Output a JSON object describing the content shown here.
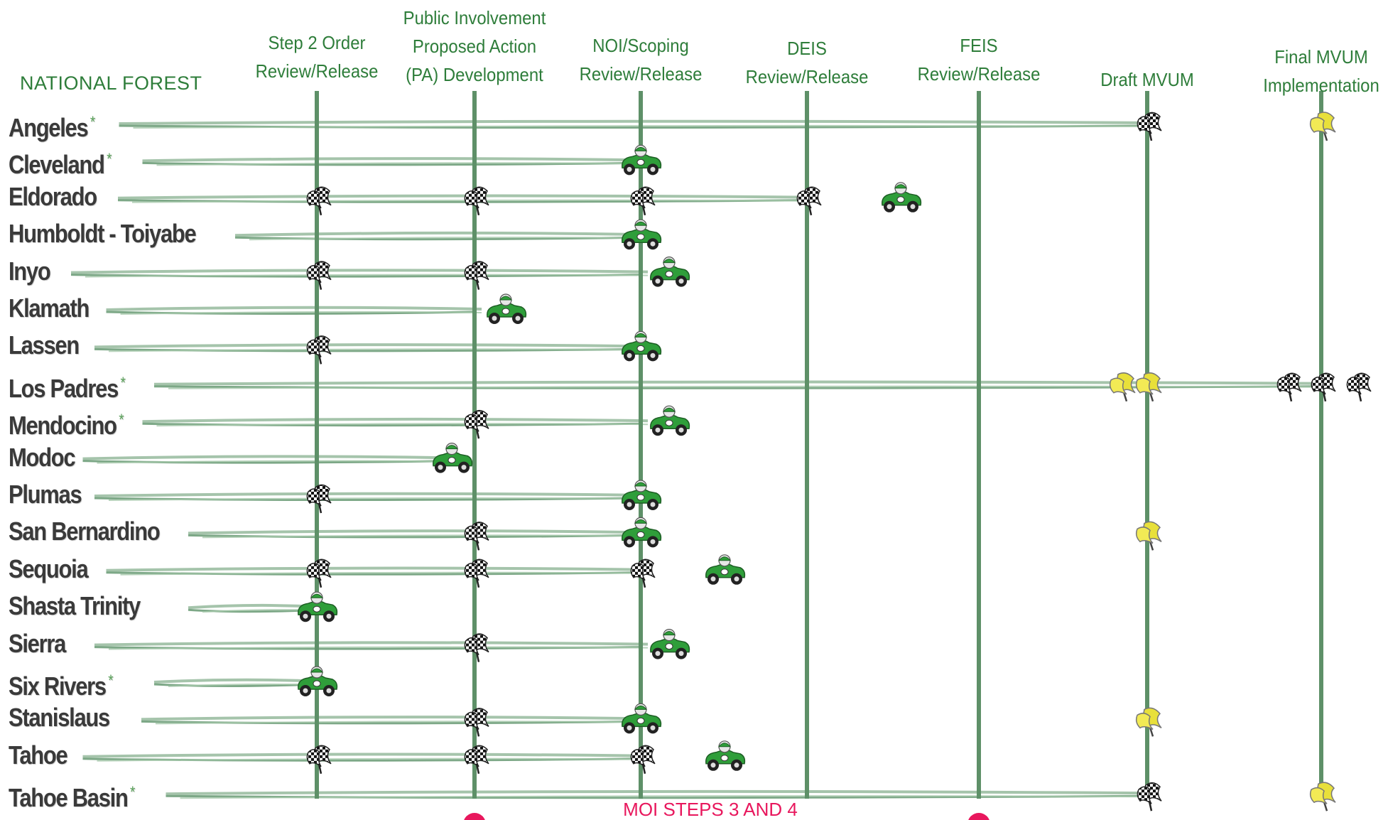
{
  "header": {
    "forest_label": "NATIONAL FOREST",
    "columns": [
      {
        "key": "step2",
        "lines": [
          "Step 2 Order",
          "Review/Release"
        ]
      },
      {
        "key": "pa",
        "lines": [
          "Public Involvement",
          "Proposed Action",
          "(PA) Development"
        ]
      },
      {
        "key": "noi",
        "lines": [
          "NOI/Scoping",
          "Review/Release"
        ]
      },
      {
        "key": "deis",
        "lines": [
          "DEIS",
          "Review/Release"
        ]
      },
      {
        "key": "feis",
        "lines": [
          "FEIS",
          "Review/Release"
        ]
      },
      {
        "key": "draft",
        "lines": [
          "Draft MVUM"
        ]
      },
      {
        "key": "final",
        "lines": [
          "Final MVUM",
          "Implementation"
        ]
      }
    ]
  },
  "footer_label": "MOI STEPS 3 AND 4",
  "colors": {
    "header_green": "#2e7d3a",
    "column_line": "#5e9068",
    "forest_text": "#3a3a3a",
    "footer_pink": "#e8175d",
    "asterisk": "#5aa35a",
    "car_body": "#2f9e3a",
    "flag_yellow": "#e8e03a"
  },
  "forests": [
    {
      "name": "Angeles",
      "asterisk": true,
      "trail_end": "draft",
      "markers": [
        {
          "type": "checkered-flag",
          "at": "draft"
        },
        {
          "type": "yellow-flag",
          "at": "final"
        }
      ]
    },
    {
      "name": "Cleveland",
      "asterisk": true,
      "trail_end": "noi",
      "markers": [
        {
          "type": "race-car",
          "at": "noi"
        }
      ]
    },
    {
      "name": "Eldorado",
      "asterisk": false,
      "trail_end": "deis",
      "markers": [
        {
          "type": "checkered-flag",
          "at": "step2"
        },
        {
          "type": "checkered-flag",
          "at": "pa"
        },
        {
          "type": "checkered-flag",
          "at": "noi"
        },
        {
          "type": "checkered-flag",
          "at": "deis"
        },
        {
          "type": "race-car",
          "at": "deis-feis"
        }
      ]
    },
    {
      "name": "Humboldt - Toiyabe",
      "asterisk": false,
      "trail_end": "noi",
      "markers": [
        {
          "type": "race-car",
          "at": "noi"
        }
      ]
    },
    {
      "name": "Inyo",
      "asterisk": false,
      "trail_end": "noi",
      "markers": [
        {
          "type": "checkered-flag",
          "at": "step2"
        },
        {
          "type": "checkered-flag",
          "at": "pa"
        },
        {
          "type": "race-car",
          "at": "after-noi"
        }
      ]
    },
    {
      "name": "Klamath",
      "asterisk": false,
      "trail_end": "pa",
      "markers": [
        {
          "type": "race-car",
          "at": "after-pa"
        }
      ]
    },
    {
      "name": "Lassen",
      "asterisk": false,
      "trail_end": "noi",
      "markers": [
        {
          "type": "checkered-flag",
          "at": "step2"
        },
        {
          "type": "race-car",
          "at": "noi"
        }
      ]
    },
    {
      "name": "Los Padres",
      "asterisk": true,
      "trail_end": "final",
      "markers": [
        {
          "type": "yellow-flag",
          "at": "before-draft"
        },
        {
          "type": "yellow-flag",
          "at": "draft"
        },
        {
          "type": "checkered-flag",
          "at": "before-final"
        },
        {
          "type": "checkered-flag",
          "at": "final"
        },
        {
          "type": "checkered-flag",
          "at": "after-final"
        }
      ]
    },
    {
      "name": "Mendocino",
      "asterisk": true,
      "trail_end": "noi",
      "markers": [
        {
          "type": "checkered-flag",
          "at": "pa"
        },
        {
          "type": "race-car",
          "at": "after-noi"
        }
      ]
    },
    {
      "name": "Modoc",
      "asterisk": false,
      "trail_end": "before-pa",
      "markers": [
        {
          "type": "race-car",
          "at": "before-pa"
        }
      ]
    },
    {
      "name": "Plumas",
      "asterisk": false,
      "trail_end": "noi",
      "markers": [
        {
          "type": "checkered-flag",
          "at": "step2"
        },
        {
          "type": "race-car",
          "at": "noi"
        }
      ]
    },
    {
      "name": "San Bernardino",
      "asterisk": false,
      "trail_end": "noi",
      "markers": [
        {
          "type": "checkered-flag",
          "at": "pa"
        },
        {
          "type": "race-car",
          "at": "noi"
        },
        {
          "type": "yellow-flag",
          "at": "draft"
        }
      ]
    },
    {
      "name": "Sequoia",
      "asterisk": false,
      "trail_end": "noi",
      "markers": [
        {
          "type": "checkered-flag",
          "at": "step2"
        },
        {
          "type": "checkered-flag",
          "at": "pa"
        },
        {
          "type": "checkered-flag",
          "at": "noi"
        },
        {
          "type": "race-car",
          "at": "noi-deis"
        }
      ]
    },
    {
      "name": "Shasta Trinity",
      "asterisk": false,
      "trail_end": "step2",
      "markers": [
        {
          "type": "race-car",
          "at": "step2"
        }
      ]
    },
    {
      "name": "Sierra",
      "asterisk": false,
      "trail_end": "noi",
      "markers": [
        {
          "type": "checkered-flag",
          "at": "pa"
        },
        {
          "type": "race-car",
          "at": "after-noi"
        }
      ]
    },
    {
      "name": "Six Rivers",
      "asterisk": true,
      "trail_end": "step2",
      "markers": [
        {
          "type": "race-car",
          "at": "step2"
        }
      ]
    },
    {
      "name": "Stanislaus",
      "asterisk": false,
      "trail_end": "noi",
      "markers": [
        {
          "type": "checkered-flag",
          "at": "pa"
        },
        {
          "type": "race-car",
          "at": "noi"
        },
        {
          "type": "yellow-flag",
          "at": "draft"
        }
      ]
    },
    {
      "name": "Tahoe",
      "asterisk": false,
      "trail_end": "noi",
      "markers": [
        {
          "type": "checkered-flag",
          "at": "step2"
        },
        {
          "type": "checkered-flag",
          "at": "pa"
        },
        {
          "type": "checkered-flag",
          "at": "noi"
        },
        {
          "type": "race-car",
          "at": "noi-deis"
        }
      ]
    },
    {
      "name": "Tahoe Basin",
      "asterisk": true,
      "trail_end": "draft",
      "markers": [
        {
          "type": "checkered-flag",
          "at": "draft"
        },
        {
          "type": "yellow-flag",
          "at": "final"
        }
      ]
    }
  ]
}
